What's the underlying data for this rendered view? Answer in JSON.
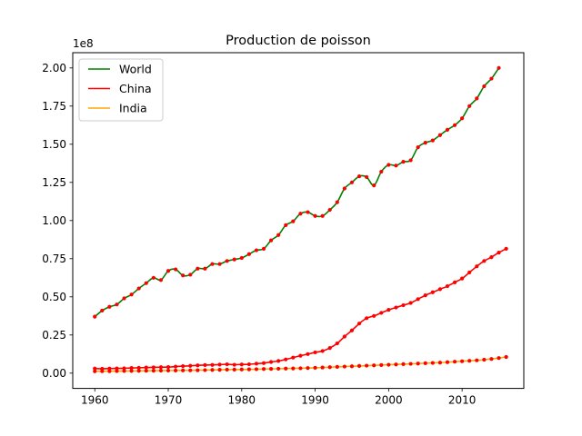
{
  "chart_data": {
    "type": "line",
    "title": "Production de poisson",
    "xlabel": "",
    "ylabel": "",
    "y_scale_label": "1e8",
    "xlim": [
      1957.0,
      2018.4
    ],
    "ylim": [
      -10000000.0,
      210000000.0
    ],
    "x_ticks": [
      1960,
      1970,
      1980,
      1990,
      2000,
      2010
    ],
    "y_ticks": [
      0,
      25000000,
      50000000,
      75000000,
      100000000,
      125000000,
      150000000,
      175000000,
      200000000
    ],
    "y_tick_labels": [
      "0.00",
      "0.25",
      "0.50",
      "0.75",
      "1.00",
      "1.25",
      "1.50",
      "1.75",
      "2.00"
    ],
    "grid": false,
    "legend_position": "top-left",
    "marker_color": "#ff0000",
    "series": [
      {
        "name": "World",
        "color": "#008000",
        "x": [
          1960,
          1961,
          1962,
          1963,
          1964,
          1965,
          1966,
          1967,
          1968,
          1969,
          1970,
          1971,
          1972,
          1973,
          1974,
          1975,
          1976,
          1977,
          1978,
          1979,
          1980,
          1981,
          1982,
          1983,
          1984,
          1985,
          1986,
          1987,
          1988,
          1989,
          1990,
          1991,
          1992,
          1993,
          1994,
          1995,
          1996,
          1997,
          1998,
          1999,
          2000,
          2001,
          2002,
          2003,
          2004,
          2005,
          2006,
          2007,
          2008,
          2009,
          2010,
          2011,
          2012,
          2013,
          2014,
          2015
        ],
        "values": [
          37000000,
          41000000,
          43500000,
          45000000,
          49000000,
          51500000,
          55500000,
          59000000,
          62500000,
          61000000,
          67000000,
          68000000,
          64000000,
          64500000,
          68500000,
          68500000,
          71500000,
          71500000,
          73500000,
          74500000,
          75500000,
          78000000,
          80500000,
          81500000,
          87000000,
          90500000,
          97000000,
          99500000,
          104500000,
          105500000,
          103000000,
          103000000,
          107000000,
          112000000,
          121000000,
          125000000,
          129000000,
          128500000,
          123000000,
          132000000,
          136500000,
          136000000,
          138500000,
          139500000,
          148000000,
          151000000,
          152500000,
          156000000,
          159500000,
          162500000,
          167000000,
          175000000,
          180000000,
          188000000,
          193000000,
          200000000
        ]
      },
      {
        "name": "China",
        "color": "#ff0000",
        "x": [
          1960,
          1961,
          1962,
          1963,
          1964,
          1965,
          1966,
          1967,
          1968,
          1969,
          1970,
          1971,
          1972,
          1973,
          1974,
          1975,
          1976,
          1977,
          1978,
          1979,
          1980,
          1981,
          1982,
          1983,
          1984,
          1985,
          1986,
          1987,
          1988,
          1989,
          1990,
          1991,
          1992,
          1993,
          1994,
          1995,
          1996,
          1997,
          1998,
          1999,
          2000,
          2001,
          2002,
          2003,
          2004,
          2005,
          2006,
          2007,
          2008,
          2009,
          2010,
          2011,
          2012,
          2013,
          2014,
          2015,
          2016
        ],
        "values": [
          3000000,
          2900000,
          3000000,
          3100000,
          3200000,
          3400000,
          3500000,
          3700000,
          3800000,
          3900000,
          4000000,
          4300000,
          4600000,
          4800000,
          5100000,
          5300000,
          5400000,
          5600000,
          5800000,
          5500000,
          5700000,
          5800000,
          6200000,
          6600000,
          7300000,
          8000000,
          9000000,
          10200000,
          11400000,
          12500000,
          13600000,
          14500000,
          16500000,
          19500000,
          24000000,
          28000000,
          32500000,
          36000000,
          37500000,
          39500000,
          41500000,
          43000000,
          44500000,
          46000000,
          48500000,
          51000000,
          53000000,
          55000000,
          57000000,
          59500000,
          62000000,
          66000000,
          70000000,
          73500000,
          76000000,
          79000000,
          81500000
        ]
      },
      {
        "name": "India",
        "color": "#ffa500",
        "x": [
          1960,
          1961,
          1962,
          1963,
          1964,
          1965,
          1966,
          1967,
          1968,
          1969,
          1970,
          1971,
          1972,
          1973,
          1974,
          1975,
          1976,
          1977,
          1978,
          1979,
          1980,
          1981,
          1982,
          1983,
          1984,
          1985,
          1986,
          1987,
          1988,
          1989,
          1990,
          1991,
          1992,
          1993,
          1994,
          1995,
          1996,
          1997,
          1998,
          1999,
          2000,
          2001,
          2002,
          2003,
          2004,
          2005,
          2006,
          2007,
          2008,
          2009,
          2010,
          2011,
          2012,
          2013,
          2014,
          2015,
          2016
        ],
        "values": [
          1200000,
          1250000,
          1300000,
          1350000,
          1400000,
          1450000,
          1500000,
          1550000,
          1600000,
          1650000,
          1700000,
          1750000,
          1800000,
          1850000,
          1900000,
          2000000,
          2100000,
          2200000,
          2300000,
          2350000,
          2400000,
          2500000,
          2600000,
          2700000,
          2800000,
          2900000,
          3000000,
          3100000,
          3200000,
          3350000,
          3500000,
          3700000,
          3900000,
          4100000,
          4300000,
          4500000,
          4700000,
          4900000,
          5100000,
          5300000,
          5500000,
          5700000,
          5900000,
          6100000,
          6300000,
          6500000,
          6700000,
          6900000,
          7200000,
          7500000,
          7800000,
          8100000,
          8400000,
          8800000,
          9300000,
          9900000,
          10600000
        ]
      }
    ]
  }
}
